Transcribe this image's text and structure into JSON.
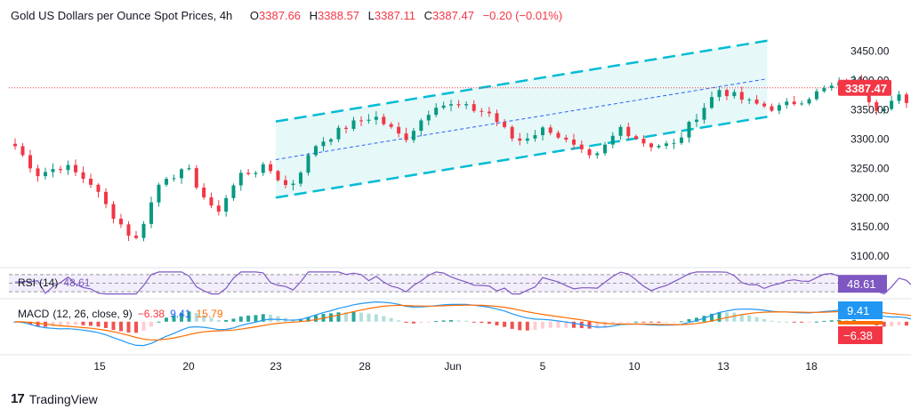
{
  "header": {
    "title": "Gold US Dollars per Ounce Spot Prices, 4h",
    "open_label": "O",
    "open": "3387.66",
    "high_label": "H",
    "high": "3388.57",
    "low_label": "L",
    "low": "3387.11",
    "close_label": "C",
    "close": "3387.47",
    "change": "−0.20 (−0.01%)"
  },
  "rsi": {
    "label": "RSI",
    "params": "(14)",
    "value": "48.61"
  },
  "macd": {
    "label": "MACD",
    "params": "(12, 26, close, 9)",
    "hist": "−6.38",
    "macd": "9.41",
    "signal": "15.79"
  },
  "branding": {
    "name": "TradingView"
  },
  "colors": {
    "up": "#089981",
    "down": "#f23645",
    "channel": "#00bcd4",
    "channel_fill": "#e6f8f8",
    "mid": "#2962ff",
    "rsi": "#7e57c2",
    "macd_line": "#2196f3",
    "signal_line": "#ff6d00"
  },
  "chart_data": {
    "type": "candlestick",
    "price_axis": {
      "ticks": [
        3100,
        3150,
        3200,
        3250,
        3300,
        3350,
        3400,
        3450
      ],
      "tick_labels": [
        "3100.00",
        "3150.00",
        "3200.00",
        "3250.00",
        "3300.00",
        "3350.00",
        "3400.00",
        "3450.00"
      ],
      "range": [
        3085,
        3495
      ]
    },
    "time_axis": {
      "labels": [
        "15",
        "20",
        "23",
        "28",
        "Jun",
        "5",
        "10",
        "13",
        "18"
      ]
    },
    "last_price": {
      "value": 3387.47,
      "label": "3387.47"
    },
    "channel": {
      "upper": [
        [
          2.0,
          3330
        ],
        [
          7.5,
          3468
        ]
      ],
      "lower": [
        [
          2.0,
          3200
        ],
        [
          7.5,
          3338
        ]
      ],
      "mid": [
        [
          2.0,
          3265
        ],
        [
          7.5,
          3403
        ]
      ]
    },
    "candles_key_points": [
      [
        -0.95,
        3288
      ],
      [
        -0.7,
        3240
      ],
      [
        -0.4,
        3255
      ],
      [
        -0.1,
        3225
      ],
      [
        0.1,
        3180
      ],
      [
        0.4,
        3125
      ],
      [
        0.7,
        3235
      ],
      [
        1.0,
        3245
      ],
      [
        1.3,
        3170
      ],
      [
        1.6,
        3240
      ],
      [
        1.9,
        3252
      ],
      [
        2.15,
        3215
      ],
      [
        2.45,
        3290
      ],
      [
        2.8,
        3322
      ],
      [
        3.1,
        3340
      ],
      [
        3.45,
        3300
      ],
      [
        3.8,
        3360
      ],
      [
        4.1,
        3355
      ],
      [
        4.4,
        3345
      ],
      [
        4.7,
        3295
      ],
      [
        5.05,
        3320
      ],
      [
        5.3,
        3290
      ],
      [
        5.55,
        3262
      ],
      [
        5.85,
        3320
      ],
      [
        6.15,
        3290
      ],
      [
        6.45,
        3290
      ],
      [
        6.7,
        3340
      ],
      [
        6.95,
        3385
      ],
      [
        7.3,
        3362
      ],
      [
        7.6,
        3352
      ],
      [
        7.9,
        3368
      ],
      [
        8.2,
        3388
      ],
      [
        8.5,
        3398
      ],
      [
        8.75,
        3352
      ],
      [
        9.0,
        3372
      ],
      [
        9.3,
        3315
      ],
      [
        9.6,
        3325
      ],
      [
        9.9,
        3312
      ],
      [
        10.2,
        3328
      ],
      [
        10.5,
        3340
      ],
      [
        10.8,
        3352
      ],
      [
        11.1,
        3370
      ],
      [
        11.3,
        3382
      ],
      [
        11.5,
        3420
      ],
      [
        11.75,
        3435
      ],
      [
        11.95,
        3448
      ],
      [
        12.15,
        3418
      ],
      [
        12.35,
        3398
      ],
      [
        12.55,
        3388
      ]
    ],
    "rsi": {
      "range": [
        20,
        80
      ],
      "levels": [
        70,
        50,
        30
      ],
      "last": 48.61
    },
    "macd": {
      "last_macd": 9.41,
      "last_signal": 15.79,
      "last_hist": -6.38
    }
  }
}
